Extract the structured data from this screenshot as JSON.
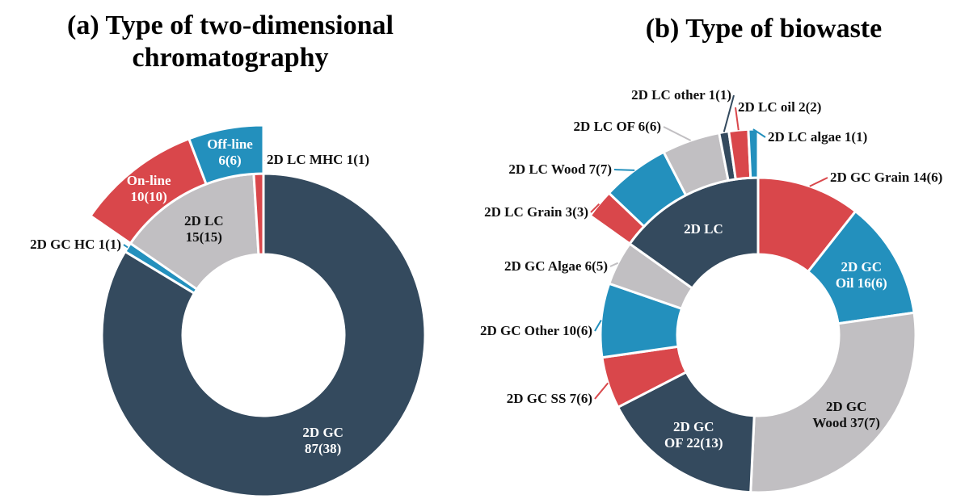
{
  "chart_data": [
    {
      "type": "donut",
      "title": "(a) Type of two-dimensional chromatography",
      "rings": [
        {
          "labels": [
            "2D GC\n87(38)",
            "2D GC HC 1(1)",
            "2D LC\n15(15)",
            "2D LC MHC 1(1)"
          ],
          "values": [
            87,
            1,
            15,
            1
          ],
          "colors": [
            "#344a5e",
            "#2390bd",
            "#c1bfc2",
            "#d9474b"
          ]
        },
        {
          "labels": [
            "On-line\n10(10)",
            "Off-line\n6(6)"
          ],
          "values": [
            10,
            6
          ],
          "colors": [
            "#d9474b",
            "#2390bd"
          ]
        }
      ]
    },
    {
      "type": "donut",
      "title": "(b) Type of biowaste",
      "rings": [
        {
          "labels": [
            "2D GC Grain 14(6)",
            "2D GC\nOil 16(6)",
            "2D GC\nWood 37(7)",
            "2D GC\nOF 22(13)",
            "2D GC SS 7(6)",
            "2D GC Other 10(6)",
            "2D GC Algae 6(5)",
            "2D LC"
          ],
          "values": [
            14,
            16,
            37,
            22,
            7,
            10,
            6,
            20
          ],
          "colors": [
            "#d9474b",
            "#2390bd",
            "#c1bfc2",
            "#344a5e",
            "#d9474b",
            "#2390bd",
            "#c1bfc2",
            "#344a5e"
          ]
        },
        {
          "labels": [
            "2D LC Grain 3(3)",
            "2D LC Wood 7(7)",
            "2D LC OF 6(6)",
            "2D LC other 1(1)",
            "2D LC oil 2(2)",
            "2D LC algae 1(1)"
          ],
          "values": [
            3,
            7,
            6,
            1,
            2,
            1
          ],
          "colors": [
            "#d9474b",
            "#2390bd",
            "#c1bfc2",
            "#344a5e",
            "#d9474b",
            "#2390bd"
          ]
        }
      ]
    }
  ]
}
